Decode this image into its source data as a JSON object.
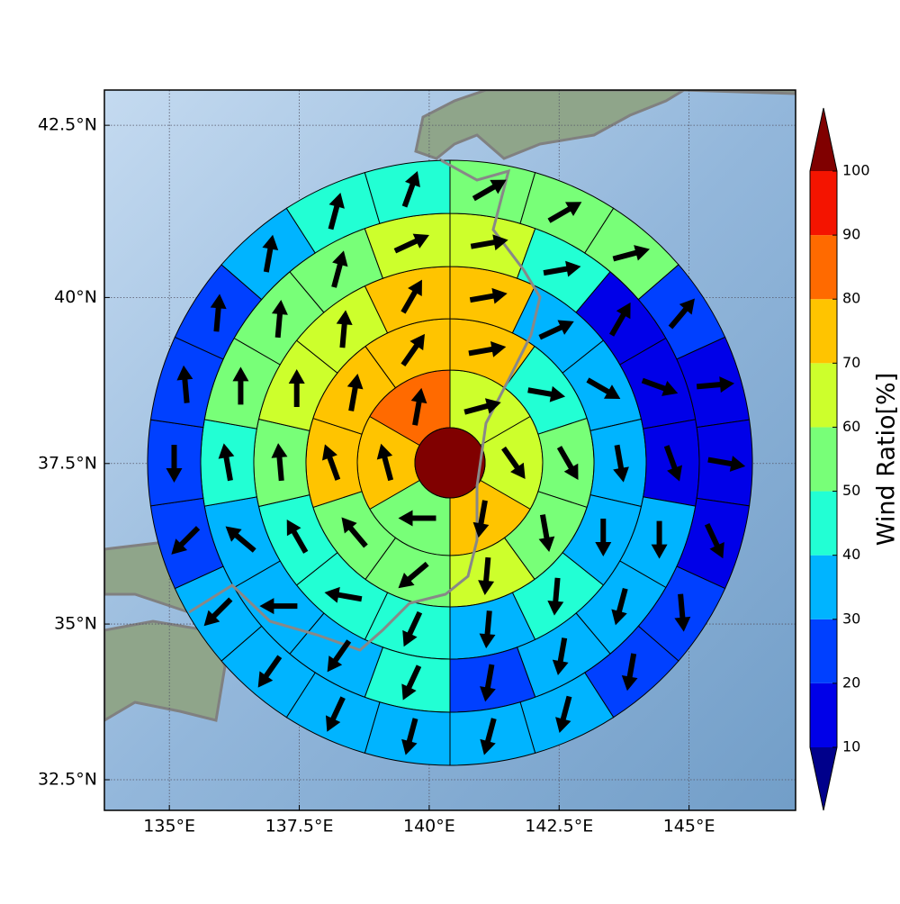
{
  "chart_data": {
    "type": "wind_rose_map",
    "xlim": [
      133.75,
      147.05
    ],
    "ylim": [
      32,
      43
    ],
    "xticks": [
      {
        "value": 135,
        "label": "135°E"
      },
      {
        "value": 137.5,
        "label": "137.5°E"
      },
      {
        "value": 140,
        "label": "140°E"
      },
      {
        "value": 142.5,
        "label": "142.5°E"
      },
      {
        "value": 145,
        "label": "145°E"
      }
    ],
    "yticks": [
      {
        "value": 32.5,
        "label": "32.5°N"
      },
      {
        "value": 35,
        "label": "35°N"
      },
      {
        "value": 37.5,
        "label": "37.5°N"
      },
      {
        "value": 40,
        "label": "40°N"
      },
      {
        "value": 42.5,
        "label": "42.5°N"
      }
    ],
    "grid": true,
    "center_value": 105,
    "rings": [
      {
        "values": [
          65,
          65,
          75,
          55,
          75,
          85
        ],
        "directions": [
          75,
          145,
          190,
          270,
          345,
          10
        ]
      },
      {
        "values": [
          75,
          45,
          55,
          55,
          65,
          55,
          55,
          75,
          75,
          75
        ],
        "directions": [
          80,
          100,
          150,
          170,
          185,
          230,
          320,
          340,
          10,
          35
        ]
      },
      {
        "values": [
          75,
          35,
          35,
          35,
          35,
          45,
          35,
          45,
          45,
          45,
          55,
          65,
          65,
          75
        ],
        "directions": [
          80,
          65,
          120,
          170,
          180,
          185,
          185,
          205,
          280,
          330,
          355,
          0,
          5,
          30
        ]
      },
      {
        "values": [
          65,
          45,
          15,
          15,
          15,
          35,
          35,
          35,
          25,
          45,
          35,
          35,
          35,
          45,
          55,
          55,
          55,
          65
        ],
        "directions": [
          80,
          80,
          30,
          110,
          160,
          180,
          195,
          190,
          190,
          205,
          215,
          270,
          310,
          350,
          0,
          5,
          15,
          65
        ]
      },
      {
        "values": [
          55,
          55,
          55,
          25,
          15,
          15,
          15,
          25,
          25,
          35,
          35,
          35,
          35,
          35,
          35,
          25,
          25,
          25,
          25,
          35,
          45,
          45
        ],
        "directions": [
          60,
          60,
          75,
          40,
          85,
          100,
          155,
          175,
          190,
          195,
          195,
          195,
          205,
          215,
          225,
          225,
          180,
          355,
          5,
          10,
          15,
          20
        ]
      }
    ],
    "colorbar": {
      "label": "Wind Ratio[%]",
      "ticks": [
        10,
        20,
        30,
        40,
        50,
        60,
        70,
        80,
        90,
        100
      ],
      "colors": [
        "#0000e8",
        "#0040ff",
        "#00b4ff",
        "#22ffd4",
        "#78ff78",
        "#cdff2c",
        "#ffc400",
        "#ff6a00",
        "#f41400"
      ],
      "under_color": "#00008b",
      "over_color": "#800000"
    }
  }
}
